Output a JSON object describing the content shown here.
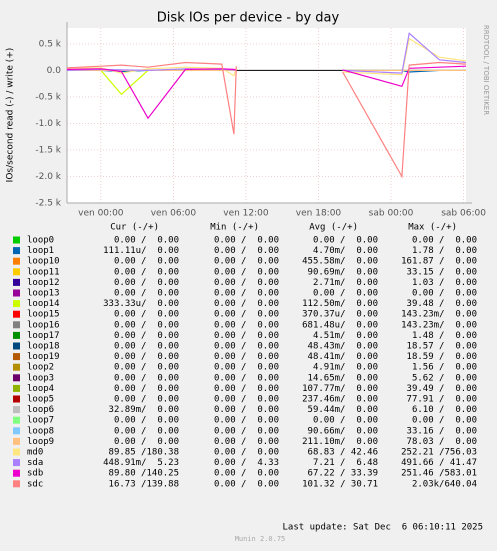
{
  "chart_data": {
    "type": "line",
    "title": "Disk IOs per device - by day",
    "y_label": "IOs/second read (-) / write (+)",
    "side_text": "RRDTOOL / TOBI OETIKER",
    "x": [
      -2.8,
      0,
      1.7,
      3.9,
      7,
      10,
      11,
      11.2,
      15,
      20,
      24.9,
      25.5,
      28,
      30.2
    ],
    "xlim": [
      -2.8,
      30.2
    ],
    "xticks": [
      {
        "value": 0,
        "label": "ven 00:00"
      },
      {
        "value": 6,
        "label": "ven 06:00"
      },
      {
        "value": 12,
        "label": "ven 12:00"
      },
      {
        "value": 18,
        "label": "ven 18:00"
      },
      {
        "value": 24,
        "label": "sab 00:00"
      },
      {
        "value": 30,
        "label": "sab 06:00"
      }
    ],
    "ylim": [
      -2500,
      800
    ],
    "yticks": [
      {
        "value": 500,
        "label": "0.5 k"
      },
      {
        "value": 0,
        "label": "0.0"
      },
      {
        "value": -500,
        "label": "-0.5 k"
      },
      {
        "value": -1000,
        "label": "-1.0 k"
      },
      {
        "value": -1500,
        "label": "-1.5 k"
      },
      {
        "value": -2000,
        "label": "-2.0 k"
      },
      {
        "value": -2500,
        "label": "-2.5 k"
      }
    ],
    "grid": true,
    "series": [
      {
        "name": "loop0",
        "color": "#00cc00",
        "values": [
          0,
          0,
          0,
          0,
          0,
          0,
          0,
          0,
          null,
          0,
          0,
          0,
          0,
          0
        ]
      },
      {
        "name": "loop1",
        "color": "#0066b3",
        "values": [
          0,
          0,
          -20,
          0,
          0,
          0,
          0,
          0,
          null,
          0,
          0,
          -30,
          0,
          0
        ]
      },
      {
        "name": "loop10",
        "color": "#ff8000",
        "values": [
          0,
          0,
          0,
          0,
          0,
          0,
          0,
          0,
          null,
          0,
          0,
          0,
          0,
          0
        ]
      },
      {
        "name": "loop11",
        "color": "#ffcc00",
        "values": [
          0,
          0,
          0,
          0,
          0,
          0,
          0,
          0,
          null,
          0,
          0,
          0,
          0,
          0
        ]
      },
      {
        "name": "loop12",
        "color": "#330099",
        "values": [
          0,
          0,
          0,
          0,
          0,
          0,
          0,
          0,
          null,
          0,
          0,
          0,
          0,
          0
        ]
      },
      {
        "name": "loop13",
        "color": "#990099",
        "values": [
          0,
          0,
          0,
          0,
          0,
          0,
          0,
          0,
          null,
          0,
          0,
          0,
          0,
          0
        ]
      },
      {
        "name": "loop14",
        "color": "#ccff00",
        "values": [
          0,
          0,
          -450,
          0,
          0,
          0,
          0,
          0,
          null,
          0,
          0,
          0,
          0,
          0
        ]
      },
      {
        "name": "loop15",
        "color": "#ff0000",
        "values": [
          0,
          0,
          0,
          0,
          0,
          0,
          0,
          0,
          null,
          0,
          0,
          0,
          0,
          0
        ]
      },
      {
        "name": "loop16",
        "color": "#808080",
        "values": [
          0,
          0,
          0,
          0,
          0,
          0,
          0,
          0,
          null,
          0,
          0,
          0,
          0,
          0
        ]
      },
      {
        "name": "loop17",
        "color": "#008f00",
        "values": [
          0,
          0,
          0,
          0,
          0,
          0,
          0,
          0,
          null,
          0,
          0,
          0,
          0,
          0
        ]
      },
      {
        "name": "loop18",
        "color": "#00487d",
        "values": [
          0,
          0,
          0,
          0,
          0,
          0,
          0,
          0,
          null,
          0,
          0,
          0,
          0,
          0
        ]
      },
      {
        "name": "loop19",
        "color": "#b35a00",
        "values": [
          0,
          0,
          0,
          0,
          0,
          0,
          0,
          0,
          null,
          0,
          0,
          0,
          0,
          0
        ]
      },
      {
        "name": "loop2",
        "color": "#b38f00",
        "values": [
          0,
          0,
          0,
          0,
          0,
          0,
          0,
          0,
          null,
          0,
          0,
          0,
          0,
          0
        ]
      },
      {
        "name": "loop3",
        "color": "#6b006b",
        "values": [
          0,
          0,
          0,
          0,
          0,
          0,
          0,
          0,
          null,
          0,
          0,
          0,
          0,
          0
        ]
      },
      {
        "name": "loop4",
        "color": "#8fb300",
        "values": [
          0,
          0,
          0,
          0,
          0,
          0,
          0,
          0,
          null,
          0,
          0,
          0,
          0,
          0
        ]
      },
      {
        "name": "loop5",
        "color": "#b30000",
        "values": [
          0,
          0,
          0,
          0,
          0,
          0,
          0,
          0,
          null,
          0,
          0,
          0,
          0,
          0
        ]
      },
      {
        "name": "loop6",
        "color": "#bebebe",
        "values": [
          0,
          0,
          0,
          0,
          0,
          0,
          0,
          0,
          null,
          0,
          0,
          0,
          0,
          0
        ]
      },
      {
        "name": "loop7",
        "color": "#80ff80",
        "values": [
          0,
          0,
          0,
          0,
          0,
          0,
          0,
          0,
          null,
          0,
          0,
          0,
          0,
          0
        ]
      },
      {
        "name": "loop8",
        "color": "#80c9ff",
        "values": [
          0,
          0,
          0,
          0,
          0,
          0,
          0,
          0,
          null,
          0,
          0,
          0,
          0,
          0
        ]
      },
      {
        "name": "loop9",
        "color": "#ffc080",
        "values": [
          0,
          0,
          0,
          0,
          0,
          0,
          0,
          0,
          null,
          0,
          0,
          0,
          0,
          0
        ]
      },
      {
        "name": "md0",
        "color": "#ffe680",
        "values": [
          40,
          50,
          -50,
          30,
          60,
          40,
          -100,
          50,
          null,
          -30,
          -80,
          600,
          250,
          180
        ]
      },
      {
        "name": "sda",
        "color": "#aa80ff",
        "values": [
          0,
          20,
          10,
          0,
          30,
          20,
          10,
          0,
          null,
          0,
          -50,
          700,
          200,
          150
        ]
      },
      {
        "name": "sdb",
        "color": "#ee00cc",
        "values": [
          20,
          30,
          -20,
          -900,
          20,
          30,
          20,
          10,
          null,
          10,
          -300,
          40,
          60,
          80
        ]
      },
      {
        "name": "sdc",
        "color": "#ff8080",
        "values": [
          50,
          80,
          100,
          60,
          150,
          120,
          -1200,
          80,
          null,
          -30,
          -2000,
          100,
          150,
          120
        ]
      }
    ]
  },
  "legend_table": {
    "columns": [
      "Cur (-/+)",
      "Min (-/+)",
      "Avg (-/+)",
      "Max (-/+)"
    ],
    "rows": [
      [
        "0.00 /  0.00",
        "0.00 /  0.00",
        "0.00 /  0.00",
        "0.00 /  0.00"
      ],
      [
        "111.11u/  0.00",
        "0.00 /  0.00",
        "4.70m/  0.00",
        "1.78 /  0.00"
      ],
      [
        "0.00 /  0.00",
        "0.00 /  0.00",
        "455.58m/  0.00",
        "161.87 /  0.00"
      ],
      [
        "0.00 /  0.00",
        "0.00 /  0.00",
        "90.69m/  0.00",
        "33.15 /  0.00"
      ],
      [
        "0.00 /  0.00",
        "0.00 /  0.00",
        "2.71m/  0.00",
        "1.03 /  0.00"
      ],
      [
        "0.00 /  0.00",
        "0.00 /  0.00",
        "0.00 /  0.00",
        "0.00 /  0.00"
      ],
      [
        "333.33u/  0.00",
        "0.00 /  0.00",
        "112.50m/  0.00",
        "39.48 /  0.00"
      ],
      [
        "0.00 /  0.00",
        "0.00 /  0.00",
        "370.37u/  0.00",
        "143.23m/  0.00"
      ],
      [
        "0.00 /  0.00",
        "0.00 /  0.00",
        "681.48u/  0.00",
        "143.23m/  0.00"
      ],
      [
        "0.00 /  0.00",
        "0.00 /  0.00",
        "4.51m/  0.00",
        "1.48 /  0.00"
      ],
      [
        "0.00 /  0.00",
        "0.00 /  0.00",
        "48.43m/  0.00",
        "18.57 /  0.00"
      ],
      [
        "0.00 /  0.00",
        "0.00 /  0.00",
        "48.41m/  0.00",
        "18.59 /  0.00"
      ],
      [
        "0.00 /  0.00",
        "0.00 /  0.00",
        "4.91m/  0.00",
        "1.56 /  0.00"
      ],
      [
        "0.00 /  0.00",
        "0.00 /  0.00",
        "14.65m/  0.00",
        "5.62 /  0.00"
      ],
      [
        "0.00 /  0.00",
        "0.00 /  0.00",
        "107.77m/  0.00",
        "39.49 /  0.00"
      ],
      [
        "0.00 /  0.00",
        "0.00 /  0.00",
        "237.46m/  0.00",
        "77.91 /  0.00"
      ],
      [
        "32.89m/  0.00",
        "0.00 /  0.00",
        "59.44m/  0.00",
        "6.10 /  0.00"
      ],
      [
        "0.00 /  0.00",
        "0.00 /  0.00",
        "0.00 /  0.00",
        "0.00 /  0.00"
      ],
      [
        "0.00 /  0.00",
        "0.00 /  0.00",
        "90.66m/  0.00",
        "33.16 /  0.00"
      ],
      [
        "0.00 /  0.00",
        "0.00 /  0.00",
        "211.10m/  0.00",
        "78.03 /  0.00"
      ],
      [
        "89.85 /180.38",
        "0.00 /  0.00",
        "68.83 / 42.46",
        "252.21 /756.03"
      ],
      [
        "448.91m/  5.23",
        "0.00 /  4.33",
        "7.21 /  6.48",
        "491.66 / 41.47"
      ],
      [
        "89.80 /140.25",
        "0.00 /  0.00",
        "67.22 / 33.39",
        "251.46 /583.01"
      ],
      [
        "16.73 /139.88",
        "0.00 /  0.00",
        "101.32 / 30.71",
        "2.03k/640.04"
      ]
    ]
  },
  "footer": {
    "last_update": "Last update: Sat Dec  6 06:10:11 2025",
    "version": "Munin 2.0.75"
  }
}
